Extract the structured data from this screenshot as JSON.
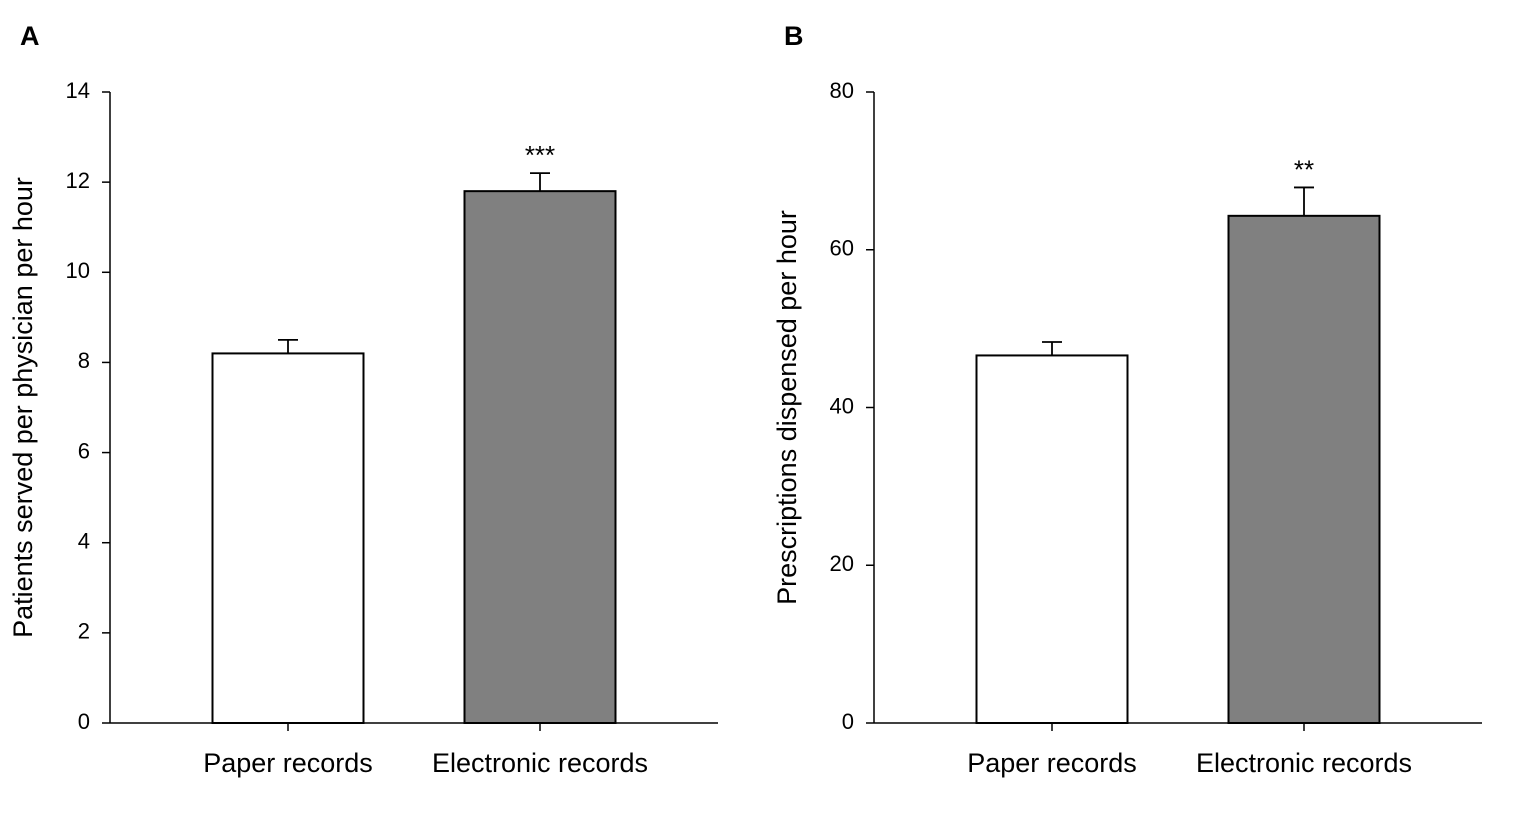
{
  "chart_data": [
    {
      "type": "bar",
      "panel": "A",
      "y_label": "Patients served per physician per hour",
      "categories": [
        "Paper records",
        "Electronic records"
      ],
      "values": [
        8.2,
        11.8
      ],
      "errors": [
        0.3,
        0.4
      ],
      "colors": [
        "#ffffff",
        "#808080"
      ],
      "significance": [
        null,
        "***"
      ],
      "ylim": [
        0,
        14
      ],
      "yticks": [
        0,
        2,
        4,
        6,
        8,
        10,
        12,
        14
      ]
    },
    {
      "type": "bar",
      "panel": "B",
      "y_label": "Prescriptions dispensed per hour",
      "categories": [
        "Paper records",
        "Electronic records"
      ],
      "values": [
        46.6,
        64.3
      ],
      "errors": [
        1.7,
        3.6
      ],
      "colors": [
        "#ffffff",
        "#808080"
      ],
      "significance": [
        null,
        "**"
      ],
      "ylim": [
        0,
        80
      ],
      "yticks": [
        0,
        20,
        40,
        60,
        80
      ]
    }
  ]
}
